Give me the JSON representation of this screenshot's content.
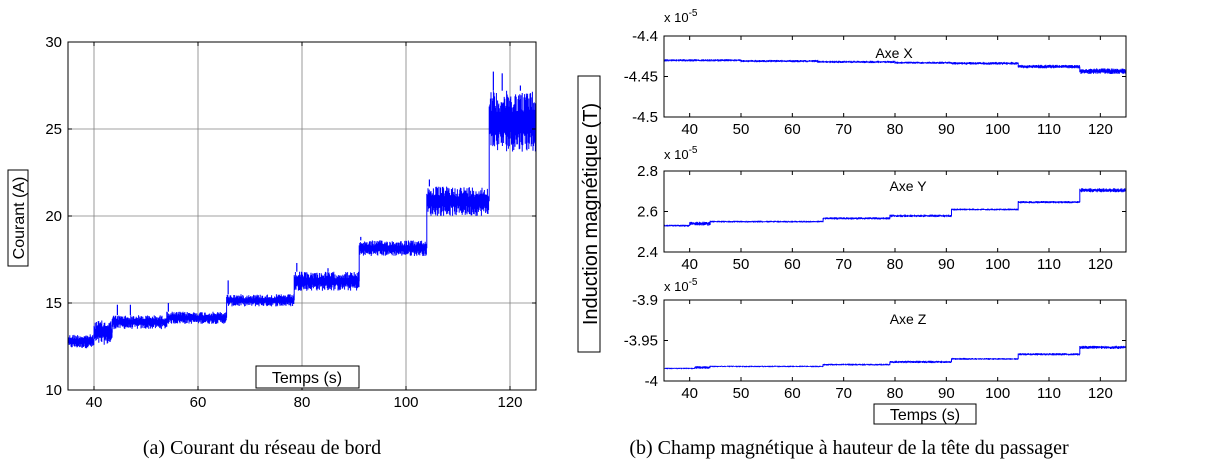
{
  "trace_color": "#0000ff",
  "captions": {
    "a": "(a) Courant du réseau de bord",
    "b": "(b) Champ magnétique à hauteur de la tête du passager"
  },
  "chart_data": [
    {
      "id": "a",
      "type": "line",
      "title": "",
      "xlabel": "Temps (s)",
      "ylabel": "Courant (A)",
      "xlim": [
        35,
        125
      ],
      "ylim": [
        10,
        30
      ],
      "xticks": [
        40,
        60,
        80,
        100,
        120
      ],
      "yticks": [
        10,
        15,
        20,
        25,
        30
      ],
      "grid": true,
      "steps": [
        {
          "x0": 35,
          "x1": 40,
          "low": 12.4,
          "high": 13.2
        },
        {
          "x0": 40,
          "x1": 43.5,
          "low": 12.6,
          "high": 14.0
        },
        {
          "x0": 43.5,
          "x1": 54,
          "low": 13.5,
          "high": 14.3
        },
        {
          "x0": 54,
          "x1": 65.5,
          "low": 13.8,
          "high": 14.5
        },
        {
          "x0": 65.5,
          "x1": 78.5,
          "low": 14.8,
          "high": 15.5
        },
        {
          "x0": 78.5,
          "x1": 91,
          "low": 15.7,
          "high": 16.8
        },
        {
          "x0": 91,
          "x1": 104,
          "low": 17.7,
          "high": 18.6
        },
        {
          "x0": 104,
          "x1": 116,
          "low": 20.0,
          "high": 21.7
        },
        {
          "x0": 116,
          "x1": 125,
          "low": 23.7,
          "high": 27.2
        }
      ],
      "spikes": [
        {
          "x": 44.5,
          "y": 14.9
        },
        {
          "x": 47,
          "y": 14.9
        },
        {
          "x": 54.3,
          "y": 15.0
        },
        {
          "x": 65.8,
          "y": 16.3
        },
        {
          "x": 79,
          "y": 17.3
        },
        {
          "x": 85,
          "y": 17.0
        },
        {
          "x": 91.3,
          "y": 18.8
        },
        {
          "x": 104.5,
          "y": 22.1
        },
        {
          "x": 116.8,
          "y": 28.3
        },
        {
          "x": 118.5,
          "y": 28.2
        },
        {
          "x": 122,
          "y": 27.5
        }
      ]
    },
    {
      "id": "b1",
      "type": "line",
      "title": "Axe X",
      "xlabel": "",
      "ylabel": "Induction magnétique (T)",
      "exponent": "x 10",
      "exponent_power": "-5",
      "xlim": [
        35,
        125
      ],
      "ylim": [
        -4.5,
        -4.4
      ],
      "xticks": [
        40,
        50,
        60,
        70,
        80,
        90,
        100,
        110,
        120
      ],
      "yticks": [
        -4.4,
        -4.45,
        -4.5
      ],
      "yticklabels": [
        "-4.4",
        "-4.45",
        "-4.5"
      ],
      "grid": false,
      "steps": [
        {
          "x0": 35,
          "x1": 50,
          "low": -4.4315,
          "high": -4.4285
        },
        {
          "x0": 50,
          "x1": 65,
          "low": -4.4325,
          "high": -4.4295
        },
        {
          "x0": 65,
          "x1": 80,
          "low": -4.4335,
          "high": -4.4305
        },
        {
          "x0": 80,
          "x1": 91,
          "low": -4.4345,
          "high": -4.4315
        },
        {
          "x0": 91,
          "x1": 104,
          "low": -4.4355,
          "high": -4.432
        },
        {
          "x0": 104,
          "x1": 116,
          "low": -4.44,
          "high": -4.4355
        },
        {
          "x0": 116,
          "x1": 125,
          "low": -4.447,
          "high": -4.44
        }
      ]
    },
    {
      "id": "b2",
      "type": "line",
      "title": "Axe Y",
      "xlabel": "",
      "ylabel": "",
      "exponent": "x 10",
      "exponent_power": "-5",
      "xlim": [
        35,
        125
      ],
      "ylim": [
        2.4,
        2.8
      ],
      "xticks": [
        40,
        50,
        60,
        70,
        80,
        90,
        100,
        110,
        120
      ],
      "yticks": [
        2.8,
        2.6,
        2.4
      ],
      "yticklabels": [
        "2.8",
        "2.6",
        "2.4"
      ],
      "grid": false,
      "steps": [
        {
          "x0": 35,
          "x1": 40,
          "low": 2.525,
          "high": 2.535
        },
        {
          "x0": 40,
          "x1": 44,
          "low": 2.53,
          "high": 2.55
        },
        {
          "x0": 44,
          "x1": 66,
          "low": 2.545,
          "high": 2.555
        },
        {
          "x0": 66,
          "x1": 79,
          "low": 2.56,
          "high": 2.572
        },
        {
          "x0": 79,
          "x1": 91,
          "low": 2.572,
          "high": 2.585
        },
        {
          "x0": 91,
          "x1": 104,
          "low": 2.605,
          "high": 2.615
        },
        {
          "x0": 104,
          "x1": 116,
          "low": 2.64,
          "high": 2.652
        },
        {
          "x0": 116,
          "x1": 125,
          "low": 2.695,
          "high": 2.715
        }
      ]
    },
    {
      "id": "b3",
      "type": "line",
      "title": "Axe Z",
      "xlabel": "Temps (s)",
      "ylabel": "",
      "exponent": "x 10",
      "exponent_power": "-5",
      "xlim": [
        35,
        125
      ],
      "ylim": [
        -4.0,
        -3.9
      ],
      "xticks": [
        40,
        50,
        60,
        70,
        80,
        90,
        100,
        110,
        120
      ],
      "yticks": [
        -3.9,
        -3.95,
        -4.0
      ],
      "yticklabels": [
        "-3.9",
        "-3.95",
        "-4"
      ],
      "grid": false,
      "steps": [
        {
          "x0": 35,
          "x1": 41,
          "low": -3.9855,
          "high": -3.9835
        },
        {
          "x0": 41,
          "x1": 44,
          "low": -3.985,
          "high": -3.9815
        },
        {
          "x0": 44,
          "x1": 66,
          "low": -3.983,
          "high": -3.981
        },
        {
          "x0": 66,
          "x1": 79,
          "low": -3.981,
          "high": -3.9785
        },
        {
          "x0": 79,
          "x1": 91,
          "low": -3.978,
          "high": -3.975
        },
        {
          "x0": 91,
          "x1": 104,
          "low": -3.974,
          "high": -3.9715
        },
        {
          "x0": 104,
          "x1": 116,
          "low": -3.9685,
          "high": -3.9655
        },
        {
          "x0": 116,
          "x1": 125,
          "low": -3.9605,
          "high": -3.9565
        }
      ]
    }
  ]
}
